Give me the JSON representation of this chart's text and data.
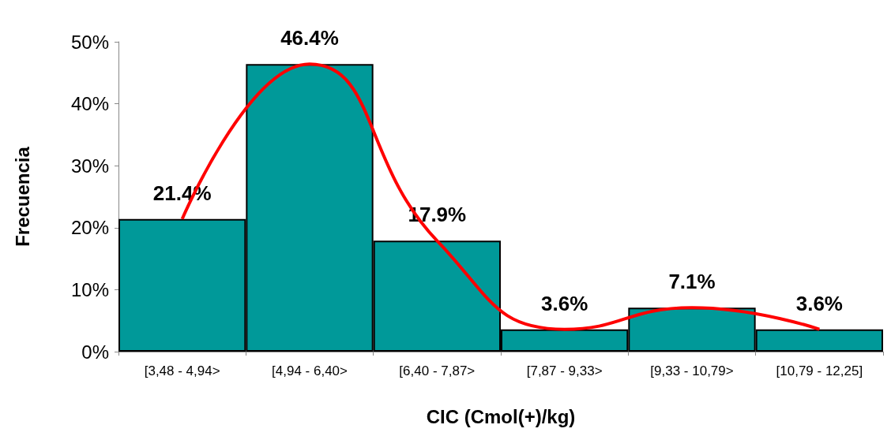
{
  "chart_data": {
    "type": "bar",
    "xlabel": "CIC (Cmol(+)/kg)",
    "ylabel": "Frecuencia",
    "categories": [
      "[3,48 - 4,94>",
      "[4,94 - 6,40>",
      "[6,40 - 7,87>",
      "[7,87 - 9,33>",
      "[9,33 - 10,79>",
      "[10,79 - 12,25]"
    ],
    "series": [
      {
        "color": "#009999",
        "values": [
          21.4,
          46.4,
          17.9,
          3.6,
          7.1,
          3.6
        ],
        "value_labels": [
          "21.4%",
          "46.4%",
          "17.9%",
          "3.6%",
          "7.1%",
          "3.6%"
        ]
      },
      {
        "type": "line",
        "color": "#ff0000",
        "values": [
          21.4,
          46.4,
          17.9,
          3.6,
          7.1,
          3.6
        ]
      }
    ],
    "ylim": [
      0,
      50
    ],
    "yticks": [
      {
        "value": 0,
        "label": "0%"
      },
      {
        "value": 10,
        "label": "10%"
      },
      {
        "value": 20,
        "label": "20%"
      },
      {
        "value": 30,
        "label": "30%"
      },
      {
        "value": 40,
        "label": "40%"
      },
      {
        "value": 50,
        "label": "50%"
      }
    ],
    "grid": false,
    "marker": "none"
  }
}
